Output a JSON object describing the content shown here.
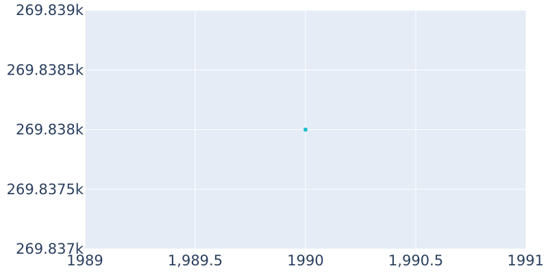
{
  "chart_data": {
    "type": "scatter",
    "title": "",
    "xlabel": "",
    "ylabel": "",
    "xlim": [
      1989,
      1991
    ],
    "ylim": [
      269837,
      269839
    ],
    "x_ticks": [
      {
        "value": 1989,
        "label": "1989"
      },
      {
        "value": 1989.5,
        "label": "1,989.5"
      },
      {
        "value": 1990,
        "label": "1990"
      },
      {
        "value": 1990.5,
        "label": "1,990.5"
      },
      {
        "value": 1991,
        "label": "1991"
      }
    ],
    "y_ticks": [
      {
        "value": 269837,
        "label": "269.837k"
      },
      {
        "value": 269837.5,
        "label": "269.8375k"
      },
      {
        "value": 269838,
        "label": "269.838k"
      },
      {
        "value": 269838.5,
        "label": "269.8385k"
      },
      {
        "value": 269839,
        "label": "269.839k"
      }
    ],
    "series": [
      {
        "points": [
          {
            "x": 1990,
            "y": 269838
          }
        ]
      }
    ],
    "grid": true,
    "legend": "none",
    "colors": {
      "plot_background": "#e5ecf6",
      "grid": "#ffffff",
      "marker": "#17becf",
      "text": "#2a3f5f"
    }
  }
}
